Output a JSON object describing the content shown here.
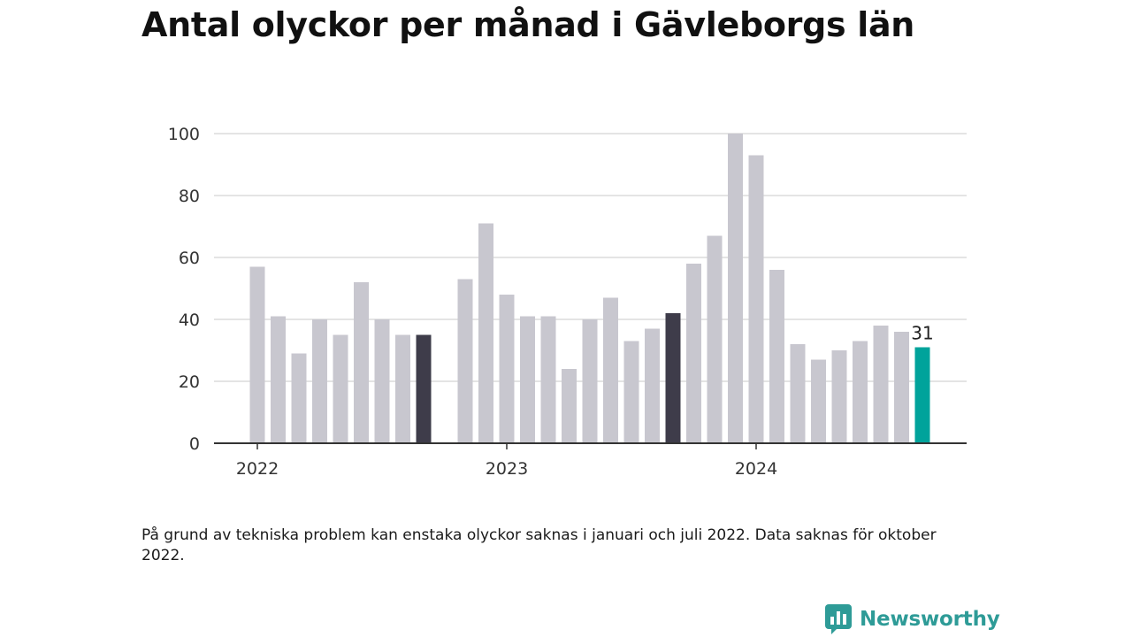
{
  "title": "Antal olyckor per månad i Gävleborgs län",
  "footnote": "På grund av tekniska problem kan enstaka olyckor saknas i januari och juli 2022. Data saknas för oktober 2022.",
  "brand": {
    "name": "Newsworthy",
    "icon": "newsworthy-logo-icon",
    "color": "#2e9b97"
  },
  "colors": {
    "bar": "#c8c7cf",
    "highlight": "#3e3c4a",
    "latest": "#00a39b"
  },
  "chart_data": {
    "type": "bar",
    "title": "Antal olyckor per månad i Gävleborgs län",
    "xlabel": "",
    "ylabel": "",
    "ylim": [
      0,
      100
    ],
    "y_ticks": [
      0,
      20,
      40,
      60,
      80,
      100
    ],
    "x_tick_labels": [
      {
        "label": "2022",
        "at": "2022-01"
      },
      {
        "label": "2023",
        "at": "2023-01"
      },
      {
        "label": "2024",
        "at": "2024-01"
      }
    ],
    "grid": true,
    "categories": [
      "2022-01",
      "2022-02",
      "2022-03",
      "2022-04",
      "2022-05",
      "2022-06",
      "2022-07",
      "2022-08",
      "2022-09",
      "2022-10",
      "2022-11",
      "2022-12",
      "2023-01",
      "2023-02",
      "2023-03",
      "2023-04",
      "2023-05",
      "2023-06",
      "2023-07",
      "2023-08",
      "2023-09",
      "2023-10",
      "2023-11",
      "2023-12",
      "2024-01",
      "2024-02",
      "2024-03",
      "2024-04",
      "2024-05",
      "2024-06",
      "2024-07",
      "2024-08",
      "2024-09"
    ],
    "values": [
      57,
      41,
      29,
      40,
      35,
      52,
      40,
      35,
      35,
      null,
      53,
      71,
      48,
      41,
      41,
      24,
      40,
      47,
      33,
      37,
      42,
      58,
      67,
      100,
      93,
      56,
      32,
      27,
      30,
      33,
      38,
      36,
      31
    ],
    "highlighted": [
      "2022-09",
      "2023-09"
    ],
    "latest": "2024-09",
    "annotations": [
      {
        "category": "2024-09",
        "text": "31"
      }
    ]
  }
}
